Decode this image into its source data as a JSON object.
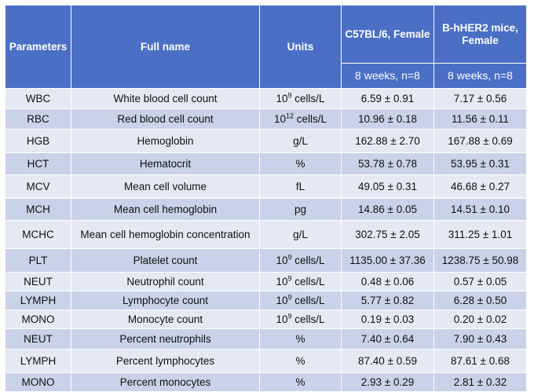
{
  "header": {
    "parameters": "Parameters",
    "full_name": "Full name",
    "units": "Units",
    "group1": "C57BL/6, Female",
    "group2": "B-hHER2 mice, Female",
    "group1_sub": "8 weeks, n=8",
    "group2_sub": "8 weeks, n=8"
  },
  "rows": [
    {
      "param": "WBC",
      "name": "White blood cell count",
      "unit_base": "10",
      "unit_exp": "9",
      "unit_rest": " cells/L",
      "g1": "6.59 ± 0.91",
      "g2": "7.17 ± 0.56"
    },
    {
      "param": "RBC",
      "name": "Red blood cell count",
      "unit_base": "10",
      "unit_exp": "12",
      "unit_rest": " cells/L",
      "g1": "10.96 ± 0.18",
      "g2": "11.56 ± 0.11"
    },
    {
      "param": "HGB",
      "name": "Hemoglobin",
      "unit_base": "g/L",
      "unit_exp": "",
      "unit_rest": "",
      "g1": "162.88 ± 2.70",
      "g2": "167.88 ± 0.69"
    },
    {
      "param": "HCT",
      "name": "Hematocrit",
      "unit_base": "%",
      "unit_exp": "",
      "unit_rest": "",
      "g1": "53.78 ± 0.78",
      "g2": "53.95 ± 0.31"
    },
    {
      "param": "MCV",
      "name": "Mean cell volume",
      "unit_base": "fL",
      "unit_exp": "",
      "unit_rest": "",
      "g1": "49.05 ± 0.31",
      "g2": "46.68 ± 0.27"
    },
    {
      "param": "MCH",
      "name": "Mean cell hemoglobin",
      "unit_base": "pg",
      "unit_exp": "",
      "unit_rest": "",
      "g1": "14.86 ± 0.05",
      "g2": "14.51 ± 0.10"
    },
    {
      "param": "MCHC",
      "name": "Mean cell hemoglobin concentration",
      "unit_base": "g/L",
      "unit_exp": "",
      "unit_rest": "",
      "g1": "302.75 ± 2.05",
      "g2": "311.25 ± 1.01"
    },
    {
      "param": "PLT",
      "name": "Platelet count",
      "unit_base": "10",
      "unit_exp": "9",
      "unit_rest": " cells/L",
      "g1": "1135.00 ± 37.36",
      "g2": "1238.75 ± 50.98"
    },
    {
      "param": "NEUT",
      "name": "Neutrophil count",
      "unit_base": "10",
      "unit_exp": "9",
      "unit_rest": " cells/L",
      "g1": "0.48 ± 0.06",
      "g2": "0.57 ± 0.05"
    },
    {
      "param": "LYMPH",
      "name": "Lymphocyte count",
      "unit_base": "10",
      "unit_exp": "9",
      "unit_rest": " cells/L",
      "g1": "5.77 ± 0.82",
      "g2": "6.28 ± 0.50"
    },
    {
      "param": "MONO",
      "name": "Monocyte count",
      "unit_base": "10",
      "unit_exp": "9",
      "unit_rest": " cells/L",
      "g1": "0.19 ± 0.03",
      "g2": "0.20 ± 0.02"
    },
    {
      "param": "NEUT",
      "name": "Percent neutrophils",
      "unit_base": "%",
      "unit_exp": "",
      "unit_rest": "",
      "g1": "7.40 ± 0.64",
      "g2": "7.90 ± 0.43"
    },
    {
      "param": "LYMPH",
      "name": "Percent lymphocytes",
      "unit_base": "%",
      "unit_exp": "",
      "unit_rest": "",
      "g1": "87.40 ± 0.59",
      "g2": "87.61 ± 0.68"
    },
    {
      "param": "MONO",
      "name": "Percent monocytes",
      "unit_base": "%",
      "unit_exp": "",
      "unit_rest": "",
      "g1": "2.93 ± 0.29",
      "g2": "2.81 ± 0.32"
    }
  ]
}
